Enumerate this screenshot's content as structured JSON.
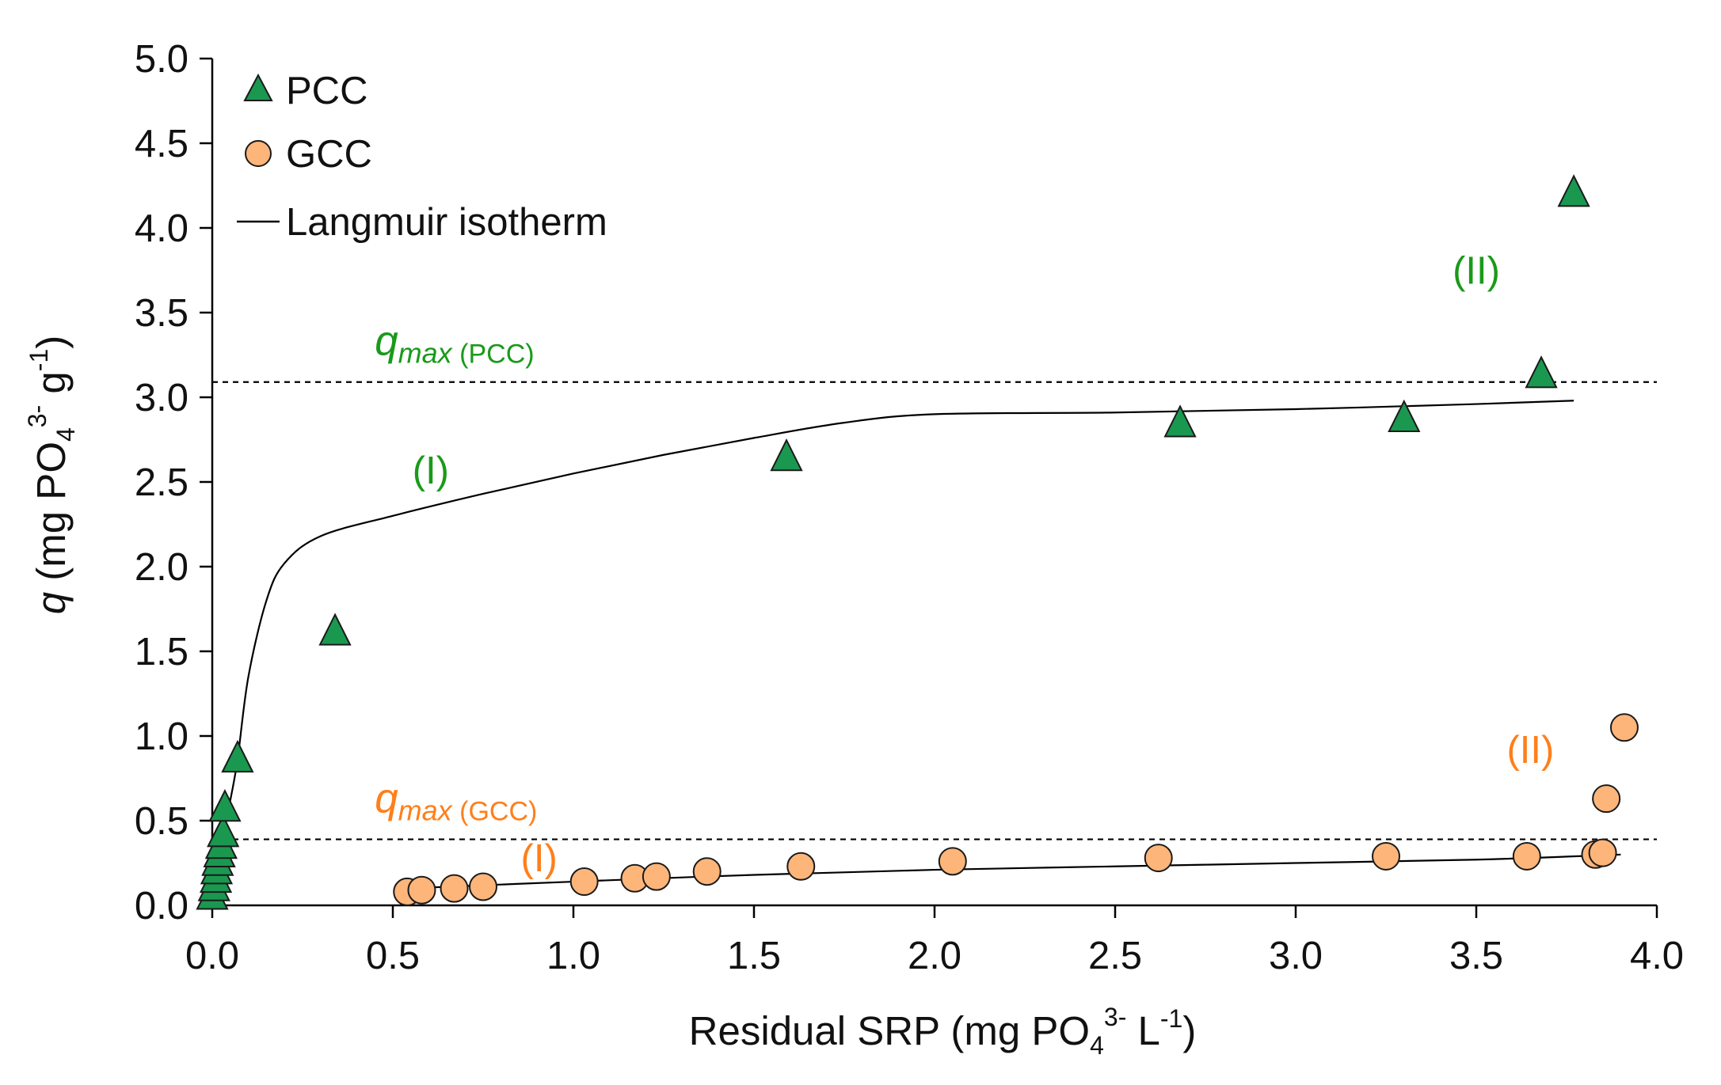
{
  "chart_data": {
    "type": "scatter",
    "title": "",
    "xlabel": {
      "prefix": "Residual SRP (mg PO",
      "sub": "4",
      "sup": "3-",
      "middle": " L",
      "sup2": "-1",
      "suffix": ")"
    },
    "ylabel": {
      "var": "q",
      "prefix": " (mg PO",
      "sub": "4",
      "sup": "3-",
      "middle": " g",
      "sup2": "-1",
      "suffix": ")"
    },
    "xlim": [
      0,
      4
    ],
    "ylim": [
      0,
      5
    ],
    "xticks": [
      {
        "value": 0,
        "label": "0.0"
      },
      {
        "value": 0.5,
        "label": "0.5"
      },
      {
        "value": 1.0,
        "label": "1.0"
      },
      {
        "value": 1.5,
        "label": "1.5"
      },
      {
        "value": 2.0,
        "label": "2.0"
      },
      {
        "value": 2.5,
        "label": "2.5"
      },
      {
        "value": 3.0,
        "label": "3.0"
      },
      {
        "value": 3.5,
        "label": "3.5"
      },
      {
        "value": 4.0,
        "label": "4.0"
      }
    ],
    "yticks": [
      {
        "value": 0,
        "label": "0.0"
      },
      {
        "value": 0.5,
        "label": "0.5"
      },
      {
        "value": 1.0,
        "label": "1.0"
      },
      {
        "value": 1.5,
        "label": "1.5"
      },
      {
        "value": 2.0,
        "label": "2.0"
      },
      {
        "value": 2.5,
        "label": "2.5"
      },
      {
        "value": 3.0,
        "label": "3.0"
      },
      {
        "value": 3.5,
        "label": "3.5"
      },
      {
        "value": 4.0,
        "label": "4.0"
      },
      {
        "value": 4.5,
        "label": "4.5"
      },
      {
        "value": 5.0,
        "label": "5.0"
      }
    ],
    "grid": false,
    "legend_position": "top-left",
    "legend": [
      {
        "label": "PCC",
        "marker": "triangle",
        "color": "#1a9850"
      },
      {
        "label": "GCC",
        "marker": "circle",
        "color": "#fdb57a"
      },
      {
        "label": "Langmuir isotherm",
        "marker": "line",
        "color": "#000000"
      }
    ],
    "series": [
      {
        "name": "PCC",
        "marker": "triangle",
        "color": "#1a9850",
        "x": [
          0.0,
          0.005,
          0.01,
          0.012,
          0.015,
          0.02,
          0.025,
          0.03,
          0.035,
          0.07,
          0.34,
          1.59,
          2.68,
          3.3,
          3.68,
          3.77
        ],
        "y": [
          0.05,
          0.1,
          0.15,
          0.2,
          0.25,
          0.3,
          0.35,
          0.42,
          0.57,
          0.86,
          1.61,
          2.64,
          2.84,
          2.87,
          3.13,
          4.2
        ]
      },
      {
        "name": "GCC",
        "marker": "circle",
        "color": "#fdb57a",
        "x": [
          0.54,
          0.58,
          0.67,
          0.75,
          1.03,
          1.17,
          1.23,
          1.37,
          1.63,
          2.05,
          2.62,
          3.25,
          3.64,
          3.83,
          3.85,
          3.86,
          3.91
        ],
        "y": [
          0.08,
          0.09,
          0.1,
          0.11,
          0.14,
          0.16,
          0.17,
          0.2,
          0.23,
          0.26,
          0.28,
          0.29,
          0.29,
          0.3,
          0.31,
          0.63,
          1.05
        ]
      }
    ],
    "fit_lines": [
      {
        "name": "Langmuir isotherm (PCC)",
        "x": [
          0.0,
          0.01,
          0.03,
          0.05,
          0.07,
          0.1,
          0.15,
          0.2,
          0.3,
          0.5,
          0.75,
          1.0,
          1.25,
          1.5,
          1.75,
          2.0,
          2.5,
          3.0,
          3.5,
          3.77
        ],
        "y": [
          0.0,
          0.2,
          0.4,
          0.62,
          0.86,
          1.35,
          1.8,
          2.02,
          2.18,
          2.3,
          2.43,
          2.55,
          2.66,
          2.76,
          2.85,
          2.9,
          2.91,
          2.93,
          2.96,
          2.98
        ]
      },
      {
        "name": "Langmuir isotherm (GCC)",
        "x": [
          0.54,
          1.0,
          1.5,
          2.0,
          2.5,
          3.0,
          3.5,
          3.9
        ],
        "y": [
          0.1,
          0.14,
          0.18,
          0.21,
          0.23,
          0.25,
          0.27,
          0.3
        ]
      }
    ],
    "reference_lines": [
      {
        "name": "qmax (PCC)",
        "y": 3.09,
        "style": "dashed",
        "color": "#000000"
      },
      {
        "name": "qmax (GCC)",
        "y": 0.39,
        "style": "dashed",
        "color": "#000000"
      }
    ],
    "annotations": [
      {
        "id": "qmax_pcc",
        "var": "q",
        "sub": "max",
        "paren": " (PCC)",
        "color": "#1a9a1a",
        "x": 0.45,
        "y": 3.25
      },
      {
        "id": "qmax_gcc",
        "var": "q",
        "sub": "max",
        "paren": " (GCC)",
        "color": "#ff7f1a",
        "x": 0.45,
        "y": 0.55
      },
      {
        "id": "pcc_I",
        "text": "(I)",
        "color": "#1a9a1a",
        "x": 0.605,
        "y": 2.49
      },
      {
        "id": "pcc_II",
        "text": "(II)",
        "color": "#1a9a1a",
        "x": 3.5,
        "y": 3.67
      },
      {
        "id": "gcc_I",
        "text": "(I)",
        "color": "#ff7f1a",
        "x": 0.905,
        "y": 0.2
      },
      {
        "id": "gcc_II",
        "text": "(II)",
        "color": "#ff7f1a",
        "x": 3.65,
        "y": 0.84
      }
    ]
  }
}
